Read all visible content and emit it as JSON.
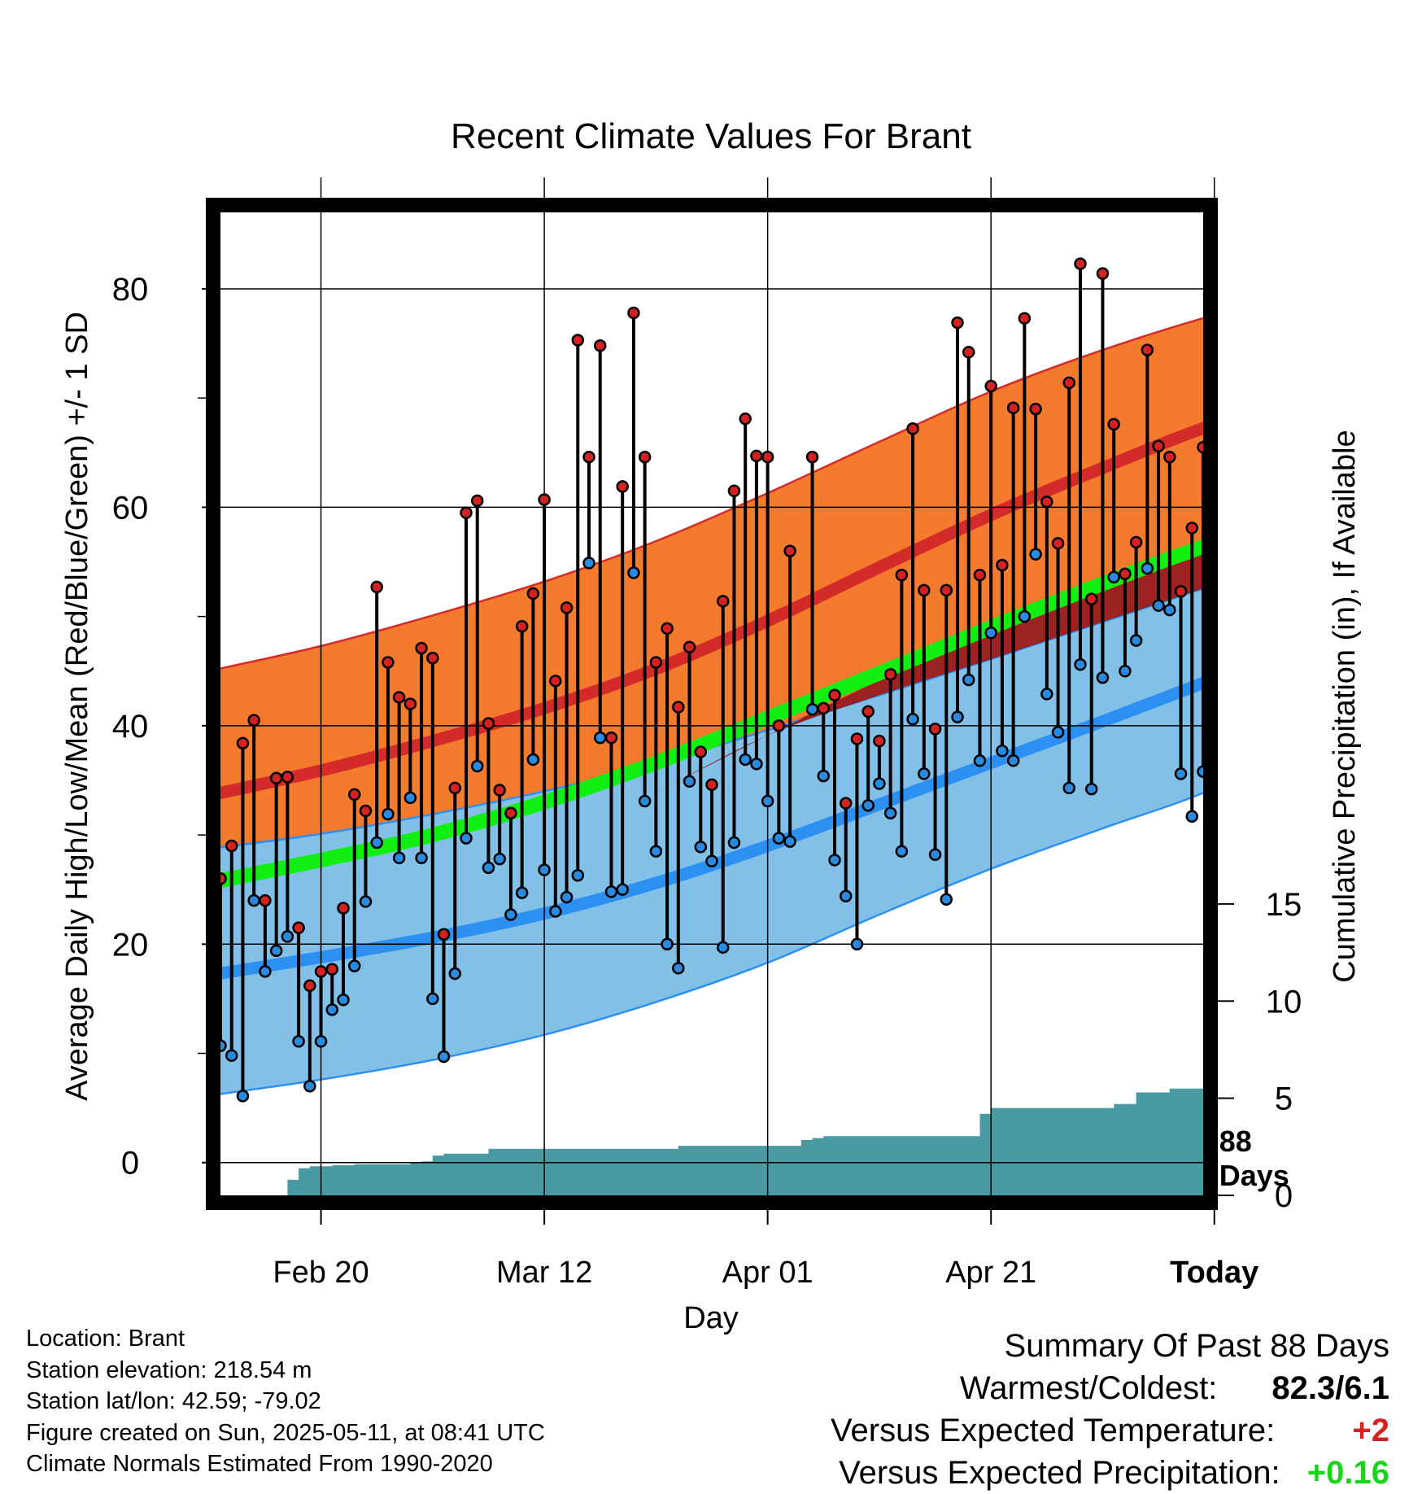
{
  "chart_data": {
    "type": "line",
    "title": "Recent Climate Values For Brant",
    "xlabel": "Day",
    "ylabel": "Average Daily High/Low/Mean (Red/Blue/Green) +/- 1 SD",
    "y2label": "Cumulative Precipitation (in), If Available",
    "xlim": [
      0,
      88
    ],
    "ylim": [
      -3,
      87
    ],
    "y2lim": [
      0,
      50.6
    ],
    "x_ticks": [
      {
        "day": 9,
        "label": "Feb 20"
      },
      {
        "day": 29,
        "label": "Mar 12"
      },
      {
        "day": 49,
        "label": "Apr 01"
      },
      {
        "day": 69,
        "label": "Apr 21"
      },
      {
        "day": 89,
        "label": "Today"
      }
    ],
    "y_ticks": [
      0,
      20,
      40,
      60,
      80
    ],
    "y_minor_ticks": [
      10,
      30,
      50,
      70
    ],
    "y2_ticks": [
      0,
      5,
      10,
      15
    ],
    "today_day": 89,
    "today_label": [
      "88",
      "Days"
    ],
    "normals": {
      "days": [
        -2,
        9,
        19,
        29,
        39,
        49,
        59,
        69,
        79,
        89,
        99
      ],
      "high_mean": [
        33.4,
        35.9,
        38.6,
        41.6,
        45.2,
        49.6,
        54.5,
        59.3,
        63.6,
        67.6,
        70.6
      ],
      "high_upper": [
        44.8,
        47.3,
        50.1,
        53.2,
        56.9,
        61.3,
        66.0,
        70.6,
        74.4,
        77.6,
        80.1
      ],
      "high_lower": [
        22.8,
        24.7,
        26.9,
        29.8,
        34.0,
        39.1,
        44.1,
        48.9,
        53.2,
        57.3,
        60.7
      ],
      "mean_mean": [
        25.4,
        27.7,
        30.0,
        33.0,
        36.6,
        40.7,
        44.8,
        49.0,
        53.0,
        56.7,
        59.5
      ],
      "low_mean": [
        17.0,
        18.8,
        20.6,
        22.8,
        25.6,
        29.0,
        32.8,
        36.6,
        40.4,
        44.3,
        48.3
      ],
      "low_upper": [
        28.6,
        30.1,
        31.9,
        34.0,
        36.5,
        39.6,
        42.8,
        46.1,
        49.5,
        52.9,
        56.3
      ],
      "low_lower": [
        6.0,
        7.6,
        9.4,
        11.7,
        14.7,
        18.3,
        22.7,
        26.9,
        30.6,
        34.3,
        39.8
      ]
    },
    "highs": [
      26,
      29,
      38.4,
      40.5,
      24,
      35.2,
      35.3,
      21.5,
      16.2,
      17.5,
      17.7,
      23.3,
      33.7,
      32.2,
      52.7,
      45.8,
      42.6,
      42,
      47.1,
      46.2,
      20.9,
      34.3,
      59.5,
      60.6,
      40.2,
      34.1,
      32,
      49.1,
      52.1,
      60.7,
      44.1,
      50.8,
      75.3,
      64.6,
      74.8,
      38.9,
      61.9,
      77.8,
      64.6,
      45.8,
      48.9,
      41.7,
      47.2,
      37.6,
      34.6,
      51.4,
      61.5,
      68.1,
      64.7,
      64.6,
      40,
      56,
      null,
      64.6,
      41.6,
      42.8,
      32.9,
      38.8,
      41.3,
      38.6,
      44.7,
      53.8,
      67.2,
      52.4,
      39.7,
      52.4,
      76.9,
      74.2,
      53.8,
      71.1,
      54.7,
      69.1,
      77.3,
      69,
      60.5,
      56.7,
      71.4,
      82.3,
      51.6,
      81.4,
      67.6,
      53.9,
      56.8,
      74.4,
      65.6,
      64.6,
      52.3,
      58.1,
      65.5
    ],
    "lows": [
      10.7,
      9.8,
      6.1,
      24,
      17.5,
      19.4,
      20.7,
      11.1,
      7,
      11.1,
      14,
      14.9,
      18,
      23.9,
      29.3,
      31.9,
      27.9,
      33.4,
      27.9,
      15,
      9.7,
      17.3,
      29.7,
      36.3,
      27,
      27.8,
      22.7,
      24.7,
      36.9,
      26.8,
      23,
      24.3,
      26.3,
      54.9,
      38.9,
      24.8,
      25,
      54,
      33.1,
      28.5,
      20,
      17.8,
      34.9,
      28.9,
      27.6,
      19.7,
      29.3,
      36.9,
      36.5,
      33.1,
      29.7,
      29.4,
      null,
      41.5,
      35.4,
      27.7,
      24.4,
      20,
      32.7,
      34.7,
      32,
      28.5,
      40.6,
      35.6,
      28.2,
      24.1,
      40.8,
      44.2,
      36.8,
      48.5,
      37.7,
      36.8,
      50,
      55.7,
      42.9,
      39.4,
      34.3,
      45.6,
      34.2,
      44.4,
      53.6,
      45,
      47.8,
      54.4,
      51,
      50.6,
      35.6,
      31.7,
      35.8
    ],
    "precip_cumulative": [
      0,
      0,
      0,
      0,
      0,
      0,
      0.8,
      1.4,
      1.5,
      1.5,
      1.55,
      1.55,
      1.6,
      1.6,
      1.6,
      1.6,
      1.6,
      1.7,
      1.75,
      2.05,
      2.15,
      2.15,
      2.15,
      2.15,
      2.4,
      2.4,
      2.4,
      2.4,
      2.4,
      2.4,
      2.4,
      2.4,
      2.4,
      2.4,
      2.4,
      2.4,
      2.4,
      2.4,
      2.4,
      2.4,
      2.4,
      2.55,
      2.55,
      2.55,
      2.55,
      2.55,
      2.55,
      2.55,
      2.55,
      2.55,
      2.55,
      2.55,
      2.85,
      2.95,
      3.05,
      3.05,
      3.05,
      3.05,
      3.05,
      3.05,
      3.05,
      3.05,
      3.05,
      3.05,
      3.05,
      3.05,
      3.05,
      3.05,
      4.2,
      4.5,
      4.5,
      4.5,
      4.5,
      4.5,
      4.5,
      4.5,
      4.5,
      4.5,
      4.5,
      4.5,
      4.7,
      4.7,
      5.3,
      5.3,
      5.3,
      5.5,
      5.5,
      5.5,
      5.5
    ]
  },
  "summary": {
    "title": "Summary Of Past 88 Days",
    "rows": [
      {
        "label": "Warmest/Coldest:",
        "value": "82.3/6.1",
        "color": "#000000"
      },
      {
        "label": "Versus Expected Temperature:",
        "value": "+2",
        "color": "#d42121"
      },
      {
        "label": "Versus Expected Precipitation:",
        "value": "+0.16",
        "color": "#19d419"
      }
    ]
  },
  "footer": [
    "Location: Brant",
    "Station elevation: 218.54 m",
    "Station lat/lon: 42.59; -79.02",
    "Figure created on Sun, 2025-05-11, at 08:41 UTC",
    "Climate Normals Estimated From 1990-2020"
  ],
  "colors": {
    "high_band": "#f47b2e",
    "high_line": "#d42a2a",
    "mean_dark": "#981616",
    "mean_line": "#11ee11",
    "low_band": "#82c0e8",
    "low_line": "#2c8ff2",
    "precip": "#4a9aa3",
    "high_point": "#d42121",
    "low_point": "#2a8adf"
  }
}
